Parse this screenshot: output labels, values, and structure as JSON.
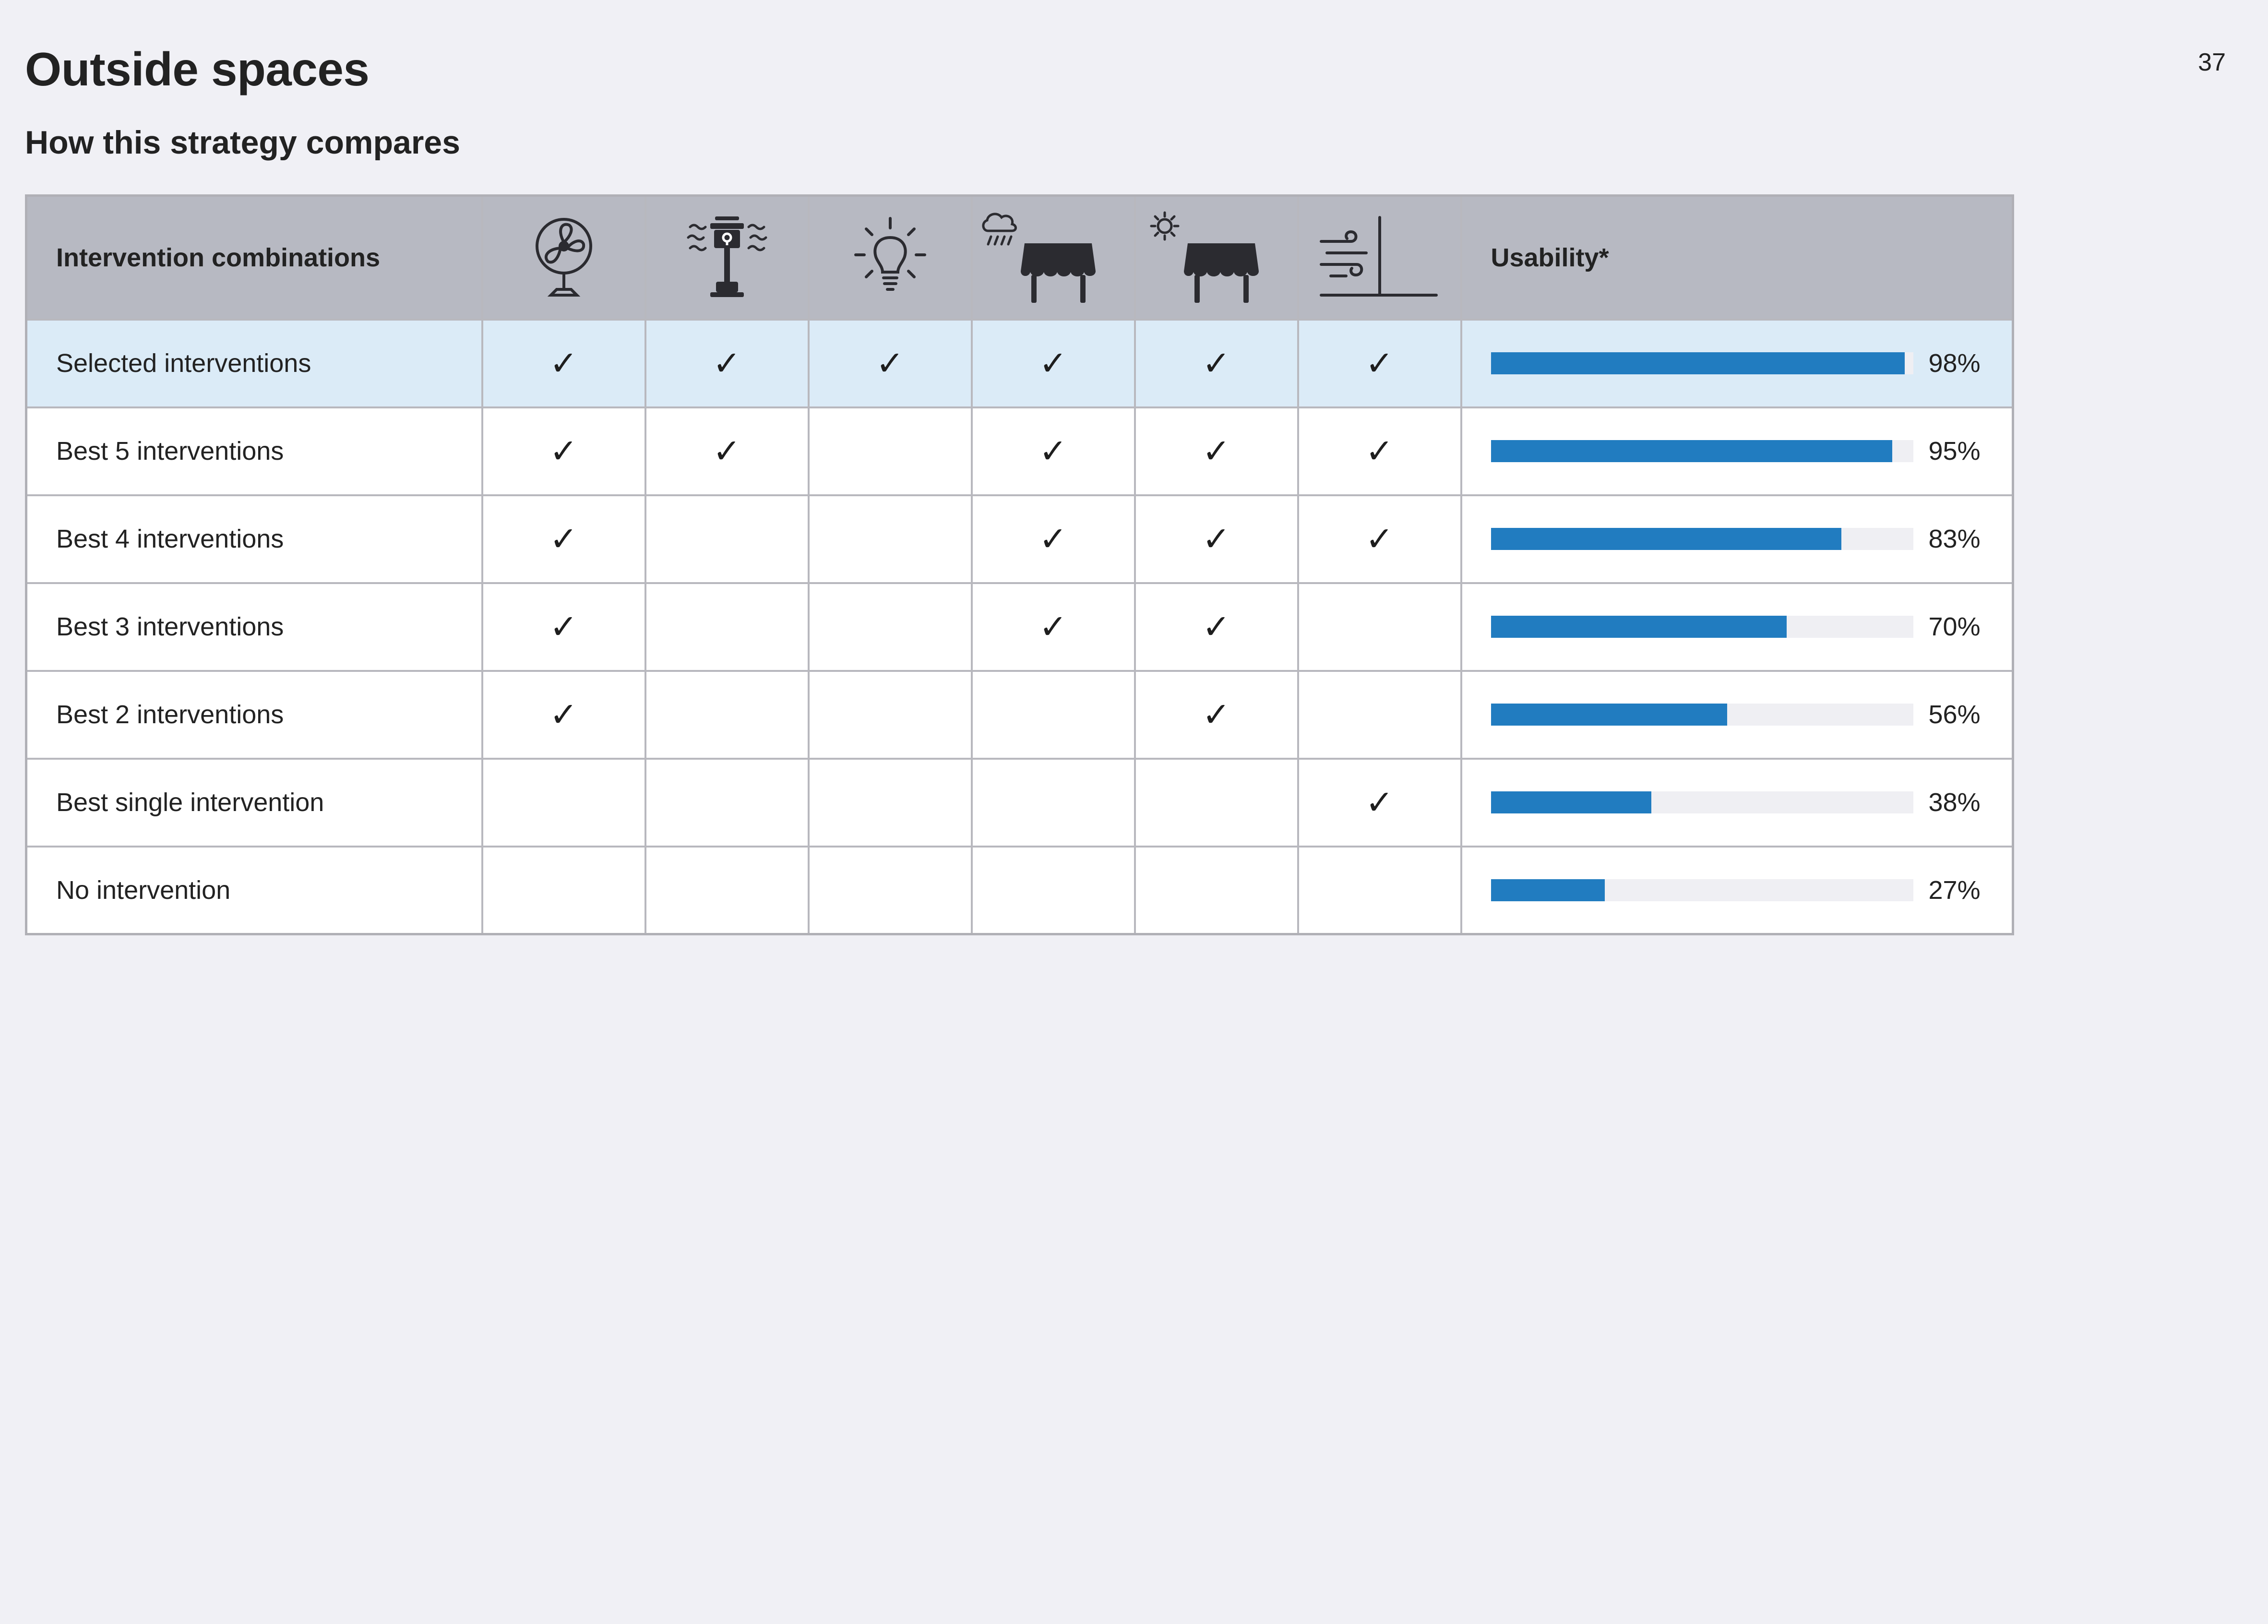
{
  "page": {
    "number": "37",
    "title": "Outside spaces",
    "subtitle": "How this strategy compares"
  },
  "table": {
    "label_header": "Intervention combinations",
    "usability_header": "Usability*",
    "intervention_icons": [
      "electric-fan-icon",
      "patio-heater-icon",
      "light-bulb-icon",
      "rain-awning-icon",
      "sun-awning-icon",
      "wind-barrier-icon"
    ],
    "check_symbol": "✓",
    "accent_color": "#217cc0",
    "rows": [
      {
        "label": "Selected interventions",
        "checks": [
          true,
          true,
          true,
          true,
          true,
          true
        ],
        "usability": 98,
        "usability_text": "98%",
        "highlighted": true
      },
      {
        "label": "Best 5 interventions",
        "checks": [
          true,
          true,
          false,
          true,
          true,
          true
        ],
        "usability": 95,
        "usability_text": "95%",
        "highlighted": false
      },
      {
        "label": "Best 4 interventions",
        "checks": [
          true,
          false,
          false,
          true,
          true,
          true
        ],
        "usability": 83,
        "usability_text": "83%",
        "highlighted": false
      },
      {
        "label": "Best 3 interventions",
        "checks": [
          true,
          false,
          false,
          true,
          true,
          false
        ],
        "usability": 70,
        "usability_text": "70%",
        "highlighted": false
      },
      {
        "label": "Best 2 interventions",
        "checks": [
          true,
          false,
          false,
          false,
          true,
          false
        ],
        "usability": 56,
        "usability_text": "56%",
        "highlighted": false
      },
      {
        "label": "Best single intervention",
        "checks": [
          false,
          false,
          false,
          false,
          false,
          true
        ],
        "usability": 38,
        "usability_text": "38%",
        "highlighted": false
      },
      {
        "label": "No intervention",
        "checks": [
          false,
          false,
          false,
          false,
          false,
          false
        ],
        "usability": 27,
        "usability_text": "27%",
        "highlighted": false
      }
    ]
  }
}
